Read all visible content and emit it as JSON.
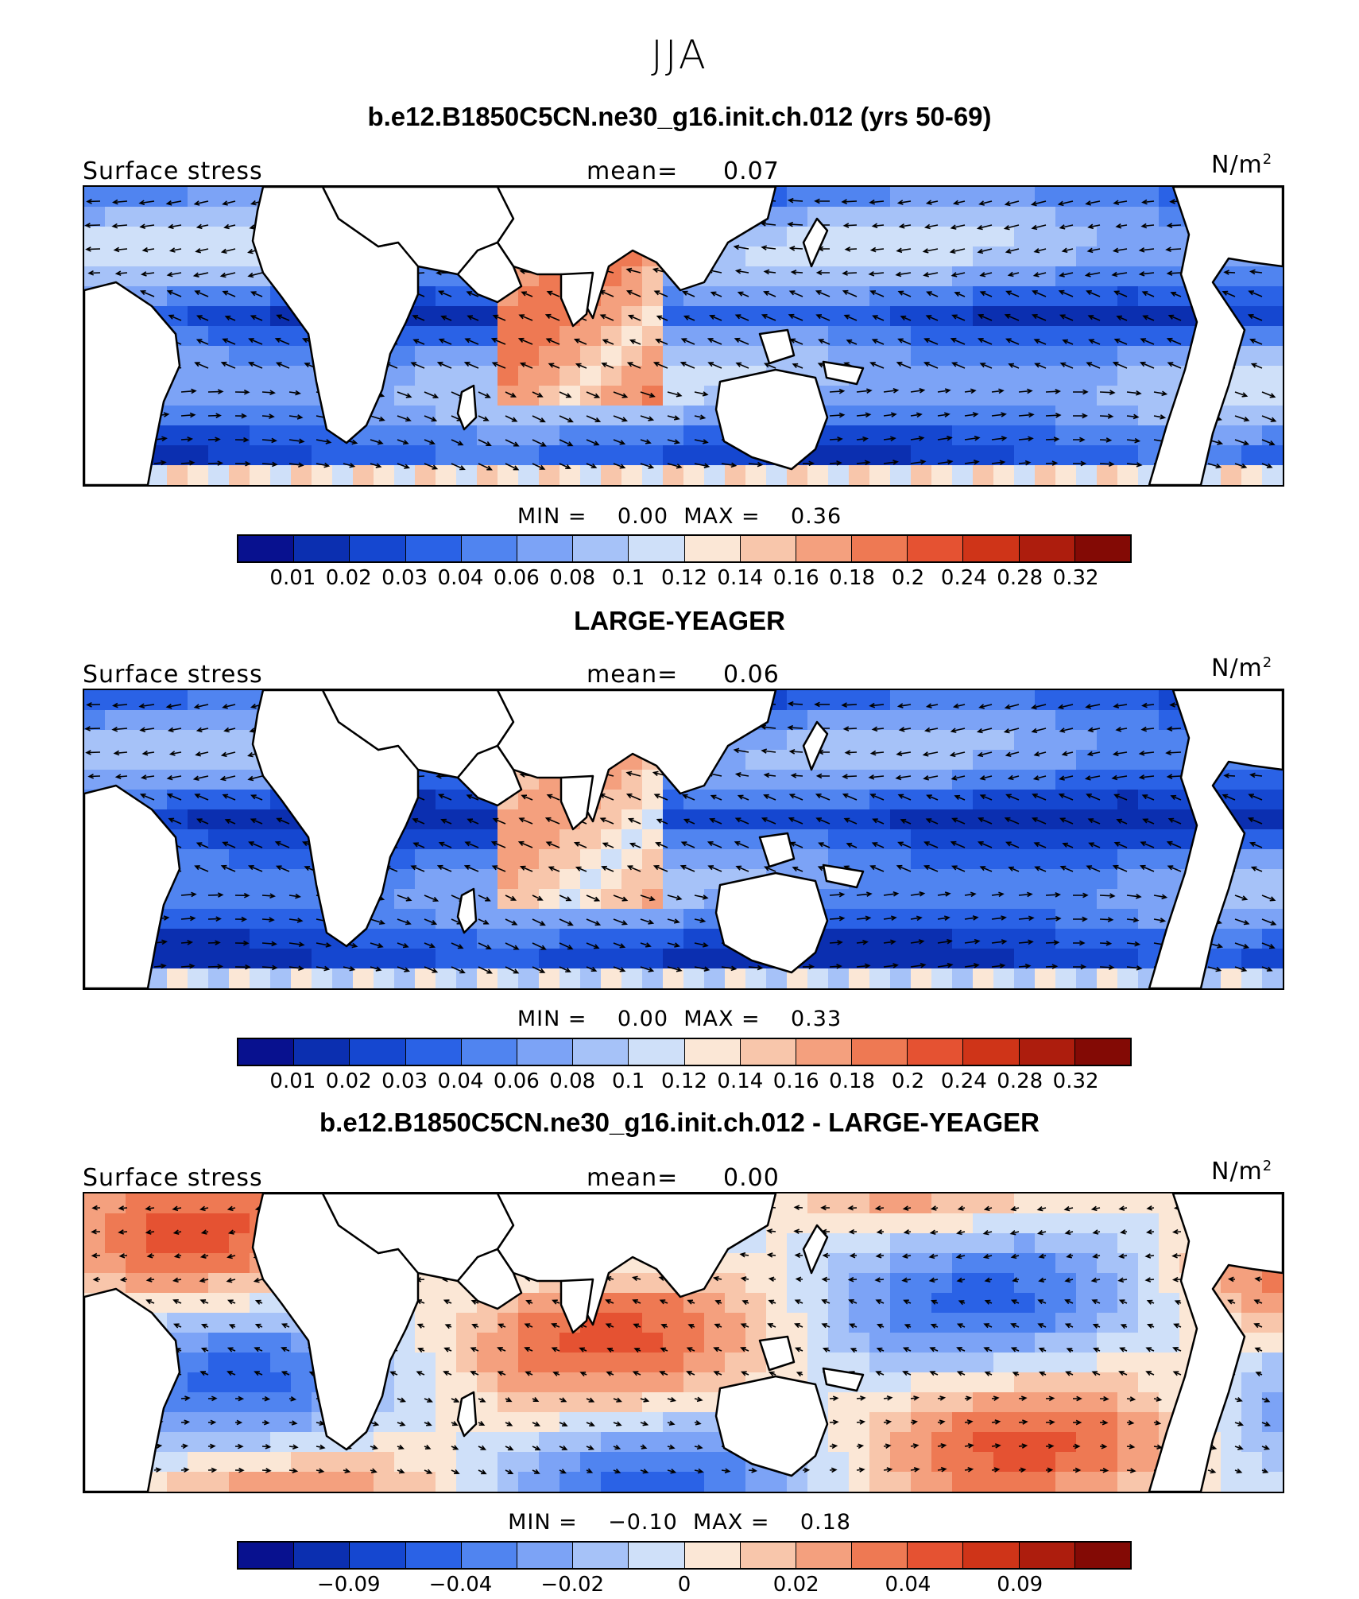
{
  "figure": {
    "title": "JJA"
  },
  "colors": [
    "#08118f",
    "#0b2fb0",
    "#1547d0",
    "#2a62e6",
    "#5084f0",
    "#7ca3f6",
    "#a6c2f8",
    "#cfe0f9",
    "#fbe7d6",
    "#f8c6ab",
    "#f4a07e",
    "#ee7953",
    "#e55232",
    "#cf3418",
    "#ad1d0d",
    "#830a05"
  ],
  "panels": [
    {
      "title": "b.e12.B1850C5CN.ne30_g16.init.ch.012 (yrs 50-69)",
      "left_label": "Surface stress",
      "mean_label": "mean=",
      "mean_value": "0.07",
      "units_base": "N/m",
      "units_exp": "2",
      "min_label": "MIN =",
      "min_value": "0.00",
      "max_label": "MAX =",
      "max_value": "0.36",
      "ticks": [
        "0.01",
        "0.02",
        "0.03",
        "0.04",
        "0.06",
        "0.08",
        "0.1",
        "0.12",
        "0.14",
        "0.16",
        "0.18",
        "0.2",
        "0.24",
        "0.28",
        "0.32"
      ]
    },
    {
      "title": "LARGE-YEAGER",
      "left_label": "Surface stress",
      "mean_label": "mean=",
      "mean_value": "0.06",
      "units_base": "N/m",
      "units_exp": "2",
      "min_label": "MIN =",
      "min_value": "0.00",
      "max_label": "MAX =",
      "max_value": "0.33",
      "ticks": [
        "0.01",
        "0.02",
        "0.03",
        "0.04",
        "0.06",
        "0.08",
        "0.1",
        "0.12",
        "0.14",
        "0.16",
        "0.18",
        "0.2",
        "0.24",
        "0.28",
        "0.32"
      ]
    },
    {
      "title": "b.e12.B1850C5CN.ne30_g16.init.ch.012 - LARGE-YEAGER",
      "left_label": "Surface stress",
      "mean_label": "mean=",
      "mean_value": "0.00",
      "units_base": "N/m",
      "units_exp": "2",
      "min_label": "MIN =",
      "min_value": "−0.10",
      "max_label": "MAX =",
      "max_value": "0.18",
      "ticks": [
        "−0.09",
        "−0.04",
        "−0.02",
        "0",
        "0.02",
        "0.04",
        "0.09"
      ]
    }
  ]
}
